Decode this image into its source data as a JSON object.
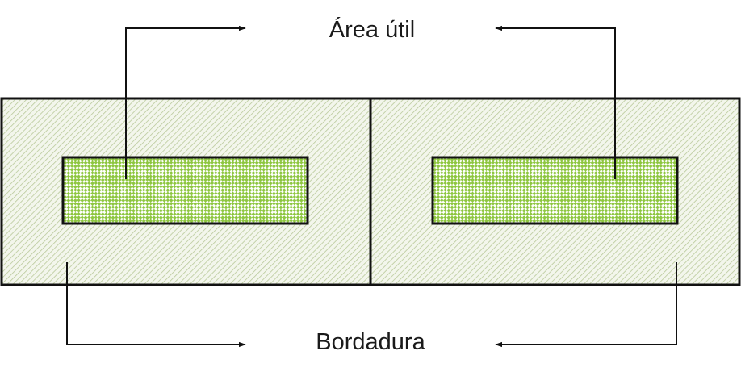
{
  "labels": {
    "useful_area": "Área útil",
    "border": "Bordadura"
  },
  "colors": {
    "border_hatch_line": "#b9c99a",
    "border_fill": "#f3f6ec",
    "useful_area_dots": "#8dc63f",
    "useful_area_fill": "#ffffff",
    "outline": "#111111",
    "arrow": "#111111"
  }
}
